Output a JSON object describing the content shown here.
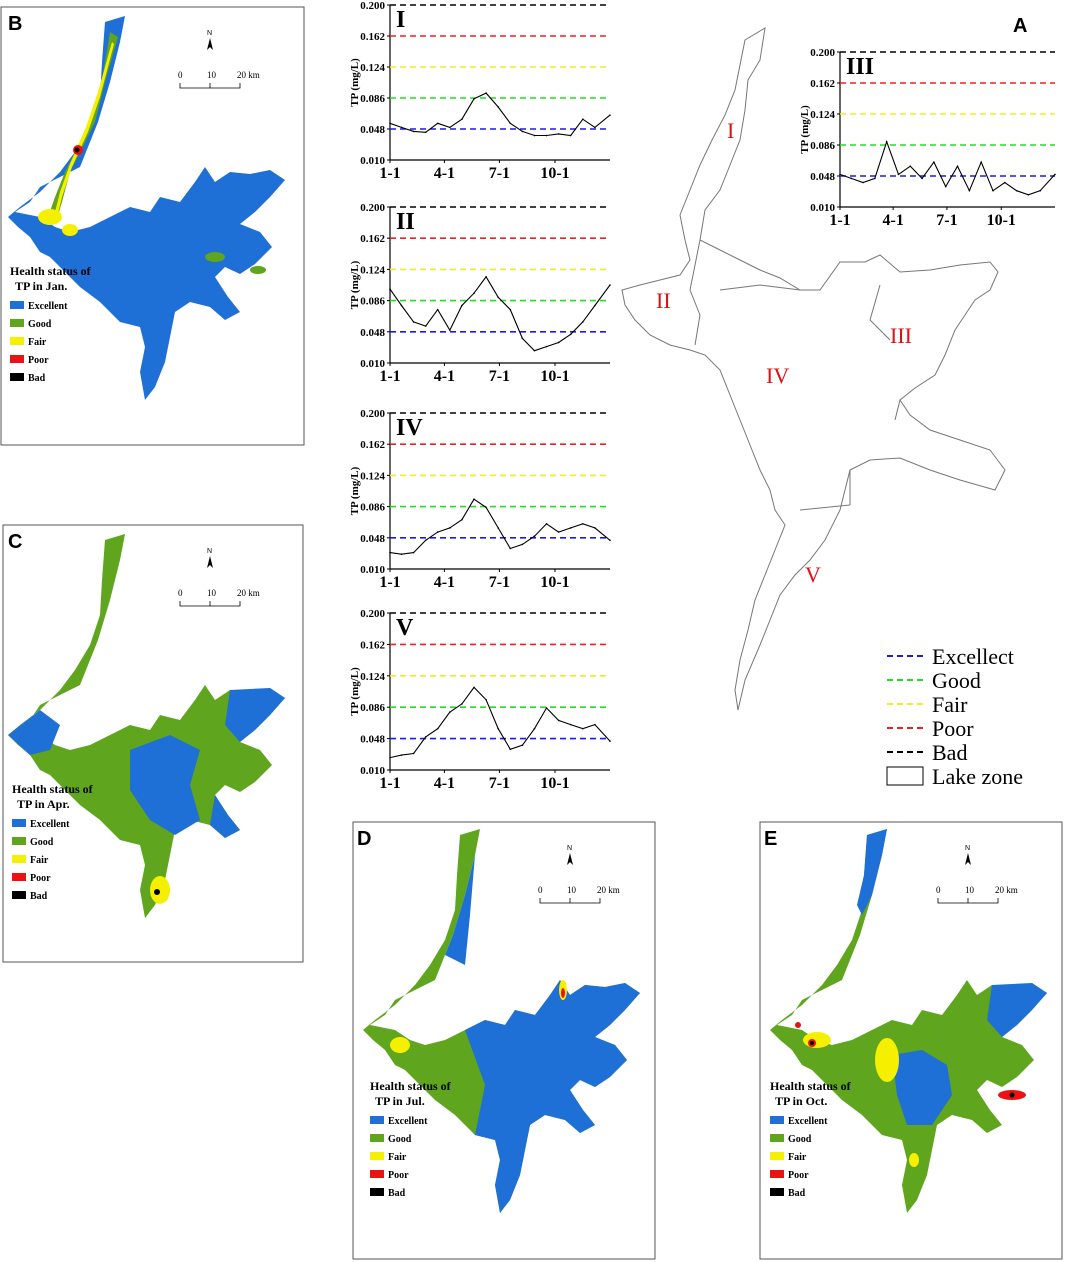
{
  "panel_letters": {
    "a": "A",
    "b": "B",
    "c": "C",
    "d": "D",
    "e": "E"
  },
  "maps": [
    {
      "id": "b",
      "legend_title_1": "Health status of",
      "legend_title_2": "TP in Jan."
    },
    {
      "id": "c",
      "legend_title_1": "Health status of",
      "legend_title_2": "TP in Apr."
    },
    {
      "id": "d",
      "legend_title_1": "Health status of",
      "legend_title_2": "TP in Jul."
    },
    {
      "id": "e",
      "legend_title_1": "Health status of",
      "legend_title_2": "TP in Oct."
    }
  ],
  "map_legend_items": [
    {
      "label": "Excellent",
      "color": "#1e6fd6"
    },
    {
      "label": "Good",
      "color": "#5fa51e"
    },
    {
      "label": "Fair",
      "color": "#f5f000"
    },
    {
      "label": "Poor",
      "color": "#ee1111"
    },
    {
      "label": "Bad",
      "color": "#000000"
    }
  ],
  "scale_bar": {
    "north": "N",
    "ticks": [
      "0",
      "10",
      "20 km"
    ]
  },
  "zone_map_labels": {
    "I": "I",
    "II": "II",
    "III": "III",
    "IV": "IV",
    "V": "V"
  },
  "main_legend": [
    {
      "label": "Excellect",
      "color": "#1a1aee",
      "style": "dashed"
    },
    {
      "label": "Good",
      "color": "#22dd22",
      "style": "dashed"
    },
    {
      "label": "Fair",
      "color": "#eeee22",
      "style": "dashed"
    },
    {
      "label": "Poor",
      "color": "#ee2222",
      "style": "dashed"
    },
    {
      "label": "Bad",
      "color": "#000000",
      "style": "dashed"
    },
    {
      "label": "Lake zone",
      "color": "#000000",
      "style": "box"
    }
  ],
  "chart_data": [
    {
      "type": "line",
      "zone": "I",
      "ylabel": "TP (mg/L)",
      "yticks": [
        "0.200",
        "0.162",
        "0.124",
        "0.086",
        "0.048",
        "0.010"
      ],
      "ylim": [
        0.01,
        0.2
      ],
      "xticks": [
        "1-1",
        "4-1",
        "7-1",
        "10-1"
      ],
      "thresholds": [
        0.048,
        0.086,
        0.124,
        0.162,
        0.2
      ],
      "x": [
        1,
        20,
        40,
        60,
        80,
        100,
        120,
        140,
        160,
        180,
        200,
        220,
        240,
        260,
        280,
        300,
        320,
        340,
        365
      ],
      "values": [
        0.055,
        0.05,
        0.045,
        0.044,
        0.055,
        0.05,
        0.06,
        0.085,
        0.092,
        0.075,
        0.055,
        0.045,
        0.04,
        0.04,
        0.042,
        0.04,
        0.06,
        0.05,
        0.065
      ]
    },
    {
      "type": "line",
      "zone": "II",
      "ylabel": "TP (mg/L)",
      "yticks": [
        "0.200",
        "0.162",
        "0.124",
        "0.086",
        "0.048",
        "0.010"
      ],
      "ylim": [
        0.01,
        0.2
      ],
      "xticks": [
        "1-1",
        "4-1",
        "7-1",
        "10-1"
      ],
      "thresholds": [
        0.048,
        0.086,
        0.124,
        0.162,
        0.2
      ],
      "x": [
        1,
        20,
        40,
        60,
        80,
        100,
        120,
        140,
        160,
        180,
        200,
        220,
        240,
        260,
        280,
        300,
        320,
        340,
        365
      ],
      "values": [
        0.1,
        0.08,
        0.06,
        0.055,
        0.075,
        0.05,
        0.08,
        0.095,
        0.115,
        0.09,
        0.075,
        0.04,
        0.025,
        0.03,
        0.035,
        0.045,
        0.06,
        0.08,
        0.105
      ]
    },
    {
      "type": "line",
      "zone": "III",
      "ylabel": "TP (mg/L)",
      "yticks": [
        "0.200",
        "0.162",
        "0.124",
        "0.086",
        "0.048",
        "0.010"
      ],
      "ylim": [
        0.01,
        0.2
      ],
      "xticks": [
        "1-1",
        "4-1",
        "7-1",
        "10-1"
      ],
      "thresholds": [
        0.048,
        0.086,
        0.124,
        0.162,
        0.2
      ],
      "x": [
        1,
        20,
        40,
        60,
        80,
        100,
        120,
        140,
        160,
        180,
        200,
        220,
        240,
        260,
        280,
        300,
        320,
        340,
        365
      ],
      "values": [
        0.05,
        0.045,
        0.04,
        0.045,
        0.09,
        0.05,
        0.06,
        0.045,
        0.065,
        0.035,
        0.06,
        0.03,
        0.065,
        0.03,
        0.04,
        0.03,
        0.025,
        0.03,
        0.05
      ]
    },
    {
      "type": "line",
      "zone": "IV",
      "ylabel": "TP (mg/L)",
      "yticks": [
        "0.200",
        "0.162",
        "0.124",
        "0.086",
        "0.048",
        "0.010"
      ],
      "ylim": [
        0.01,
        0.2
      ],
      "xticks": [
        "1-1",
        "4-1",
        "7-1",
        "10-1"
      ],
      "thresholds": [
        0.048,
        0.086,
        0.124,
        0.162,
        0.2
      ],
      "x": [
        1,
        20,
        40,
        60,
        80,
        100,
        120,
        140,
        160,
        180,
        200,
        220,
        240,
        260,
        280,
        300,
        320,
        340,
        365
      ],
      "values": [
        0.03,
        0.028,
        0.03,
        0.045,
        0.055,
        0.06,
        0.07,
        0.095,
        0.085,
        0.06,
        0.035,
        0.04,
        0.05,
        0.065,
        0.055,
        0.06,
        0.065,
        0.06,
        0.045
      ]
    },
    {
      "type": "line",
      "zone": "V",
      "ylabel": "TP (mg/L)",
      "yticks": [
        "0.200",
        "0.162",
        "0.124",
        "0.086",
        "0.048",
        "0.010"
      ],
      "ylim": [
        0.01,
        0.2
      ],
      "xticks": [
        "1-1",
        "4-1",
        "7-1",
        "10-1"
      ],
      "thresholds": [
        0.048,
        0.086,
        0.124,
        0.162,
        0.2
      ],
      "x": [
        1,
        20,
        40,
        60,
        80,
        100,
        120,
        140,
        160,
        180,
        200,
        220,
        240,
        260,
        280,
        300,
        320,
        340,
        365
      ],
      "values": [
        0.025,
        0.028,
        0.03,
        0.05,
        0.06,
        0.08,
        0.09,
        0.11,
        0.095,
        0.06,
        0.035,
        0.04,
        0.06,
        0.085,
        0.07,
        0.065,
        0.06,
        0.065,
        0.045
      ]
    }
  ]
}
